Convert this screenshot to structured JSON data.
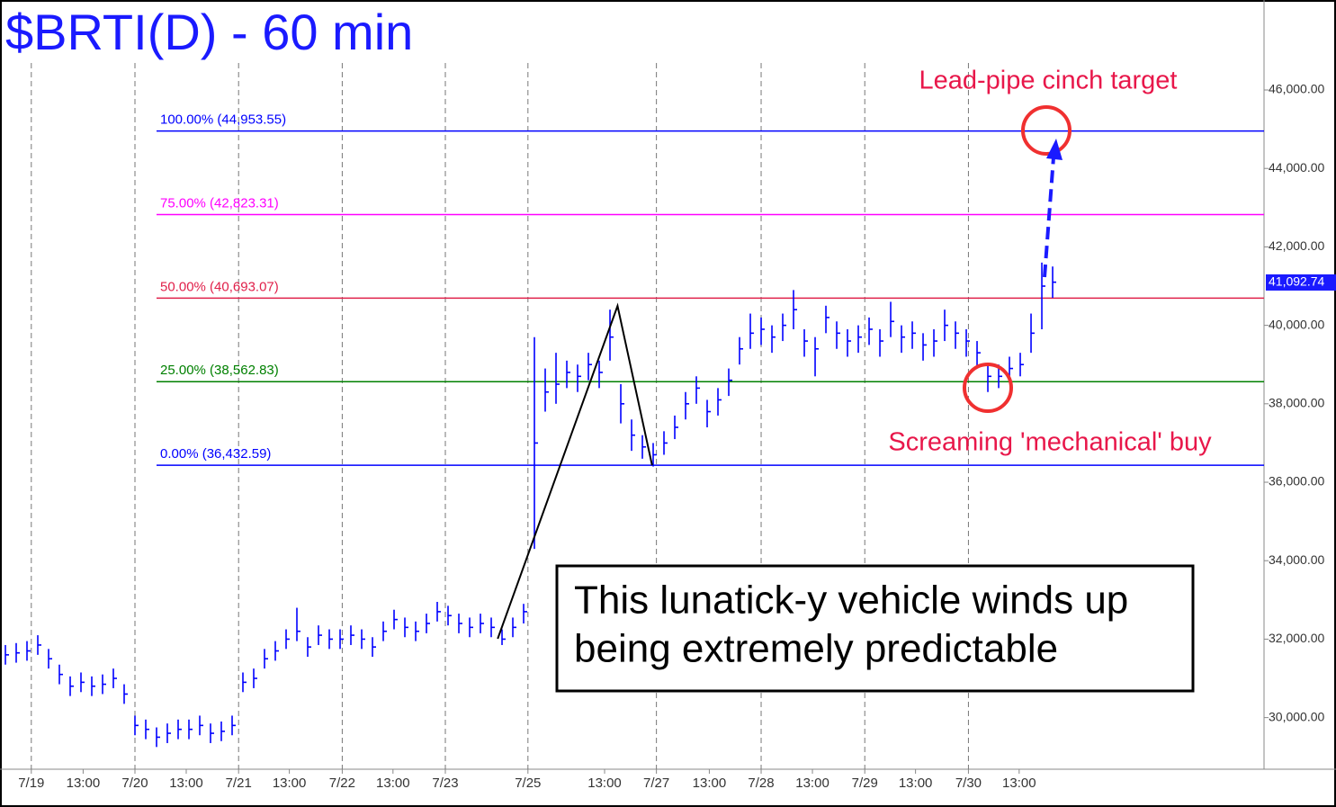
{
  "chart_data": {
    "type": "ohlc",
    "title": "$BRTI(D) - 60 min",
    "color": "#0000ff",
    "ylim": [
      28684,
      48294
    ],
    "yticks": [
      {
        "value": 30000,
        "label": "30,000.00"
      },
      {
        "value": 32000,
        "label": "32,000.00"
      },
      {
        "value": 34000,
        "label": "34,000.00"
      },
      {
        "value": 36000,
        "label": "36,000.00"
      },
      {
        "value": 38000,
        "label": "38,000.00"
      },
      {
        "value": 40000,
        "label": "40,000.00"
      },
      {
        "value": 42000,
        "label": "42,000.00"
      },
      {
        "value": 44000,
        "label": "44,000.00"
      },
      {
        "value": 46000,
        "label": "46,000.00"
      }
    ],
    "xlim": [
      -0.5,
      116.58
    ],
    "xticks": [
      {
        "value": 2.4,
        "label": "7/19"
      },
      {
        "value": 7.2,
        "label": "13:00"
      },
      {
        "value": 12,
        "label": "7/20"
      },
      {
        "value": 16.75,
        "label": "13:00"
      },
      {
        "value": 21.6,
        "label": "7/21"
      },
      {
        "value": 26.3,
        "label": "13:00"
      },
      {
        "value": 31.2,
        "label": "7/22"
      },
      {
        "value": 35.9,
        "label": "13:00"
      },
      {
        "value": 40.75,
        "label": "7/23"
      },
      {
        "value": 48.4,
        "label": "7/25"
      },
      {
        "value": 55.5,
        "label": "13:00"
      },
      {
        "value": 60.3,
        "label": "7/27"
      },
      {
        "value": 65.2,
        "label": "13:00"
      },
      {
        "value": 70,
        "label": "7/28"
      },
      {
        "value": 74.75,
        "label": "13:00"
      },
      {
        "value": 79.6,
        "label": "7/29"
      },
      {
        "value": 84.3,
        "label": "13:00"
      },
      {
        "value": 89.2,
        "label": "7/30"
      },
      {
        "value": 93.9,
        "label": "13:00"
      }
    ],
    "close": [
      31600,
      31650,
      31700,
      31850,
      31500,
      31100,
      30800,
      30900,
      30800,
      30850,
      31000,
      30600,
      29800,
      29700,
      29500,
      29600,
      29700,
      29700,
      29800,
      29600,
      29650,
      29800,
      30900,
      31000,
      31500,
      31700,
      32000,
      32200,
      31800,
      32100,
      32000,
      32000,
      32100,
      32000,
      31800,
      32200,
      32500,
      32300,
      32200,
      32400,
      32700,
      32600,
      32400,
      32300,
      32400,
      32300,
      32000,
      32300,
      32700,
      37000,
      38300,
      38500,
      38800,
      38700,
      39000,
      38800,
      39700,
      38000,
      37200,
      36900,
      36700,
      37000,
      37400,
      38000,
      38400,
      37800,
      38100,
      38600,
      39400,
      39800,
      39900,
      39700,
      40000,
      40400,
      39600,
      39400,
      40200,
      39800,
      39600,
      39700,
      39900,
      39600,
      40100,
      39700,
      39800,
      39500,
      39600,
      40000,
      39800,
      39600,
      39300,
      38700,
      38700,
      38900,
      39000,
      39800,
      41000,
      41100
    ],
    "high": [
      31850,
      31900,
      31950,
      32100,
      31750,
      31350,
      31050,
      31150,
      31050,
      31100,
      31250,
      30850,
      30050,
      29950,
      29750,
      29850,
      29950,
      29950,
      30050,
      29850,
      29900,
      30050,
      31150,
      31250,
      31750,
      31950,
      32250,
      32800,
      32050,
      32350,
      32250,
      32250,
      32350,
      32250,
      32050,
      32450,
      32750,
      32550,
      32450,
      32650,
      32950,
      32850,
      32650,
      32550,
      32650,
      32550,
      32250,
      32550,
      32900,
      39700,
      38900,
      39300,
      39100,
      39000,
      39300,
      39100,
      40400,
      38500,
      37600,
      37200,
      37000,
      37300,
      37700,
      38300,
      38700,
      38100,
      38400,
      38900,
      39700,
      40300,
      40200,
      40000,
      40300,
      40900,
      39900,
      39700,
      40500,
      40100,
      39900,
      40000,
      40200,
      39900,
      40600,
      40000,
      40100,
      39800,
      39900,
      40400,
      40100,
      39900,
      39600,
      39000,
      39000,
      39200,
      39300,
      40300,
      41600,
      41500
    ],
    "low": [
      31350,
      31400,
      31450,
      31600,
      31250,
      30850,
      30550,
      30650,
      30550,
      30600,
      30750,
      30350,
      29550,
      29450,
      29250,
      29350,
      29450,
      29450,
      29550,
      29350,
      29400,
      29550,
      30650,
      30750,
      31250,
      31450,
      31750,
      31950,
      31550,
      31850,
      31750,
      31750,
      31850,
      31750,
      31550,
      31950,
      32250,
      32050,
      31950,
      32150,
      32450,
      32350,
      32150,
      32050,
      32150,
      32050,
      31850,
      32050,
      32400,
      34300,
      37800,
      38000,
      38400,
      38300,
      38600,
      38400,
      39100,
      37500,
      36800,
      36600,
      36400,
      36700,
      37100,
      37600,
      38000,
      37400,
      37700,
      38200,
      39000,
      39400,
      39500,
      39300,
      39600,
      39900,
      39200,
      38700,
      39800,
      39400,
      39200,
      39300,
      39500,
      39200,
      39700,
      39300,
      39400,
      39100,
      39200,
      39600,
      39400,
      39200,
      38900,
      38300,
      38400,
      38600,
      38700,
      39300,
      39900,
      40700
    ],
    "levels": [
      {
        "value": 44953.55,
        "label": "100.00% (44,953.55)",
        "color": "#0000ff"
      },
      {
        "value": 42823.31,
        "label": "75.00% (42,823.31)",
        "color": "#ff00ff"
      },
      {
        "value": 40693.07,
        "label": "50.00% (40,693.07)",
        "color": "#e0204a"
      },
      {
        "value": 38562.83,
        "label": "25.00% (38,562.83)",
        "color": "#008000"
      },
      {
        "value": 36432.59,
        "label": "0.00% (36,432.59)",
        "color": "#0000ff"
      }
    ],
    "zigzag": {
      "x": [
        45.6,
        56.7,
        59.9
      ],
      "y": [
        32010,
        40495,
        36432.59
      ]
    },
    "last_price": {
      "value": 41092.74,
      "label": "41,092.74"
    },
    "annotations": [
      "Lead-pipe cinch target",
      "Screaming 'mechanical' buy"
    ],
    "box_text": [
      "This lunatick-y vehicle winds up",
      "being extremely predictable"
    ]
  }
}
